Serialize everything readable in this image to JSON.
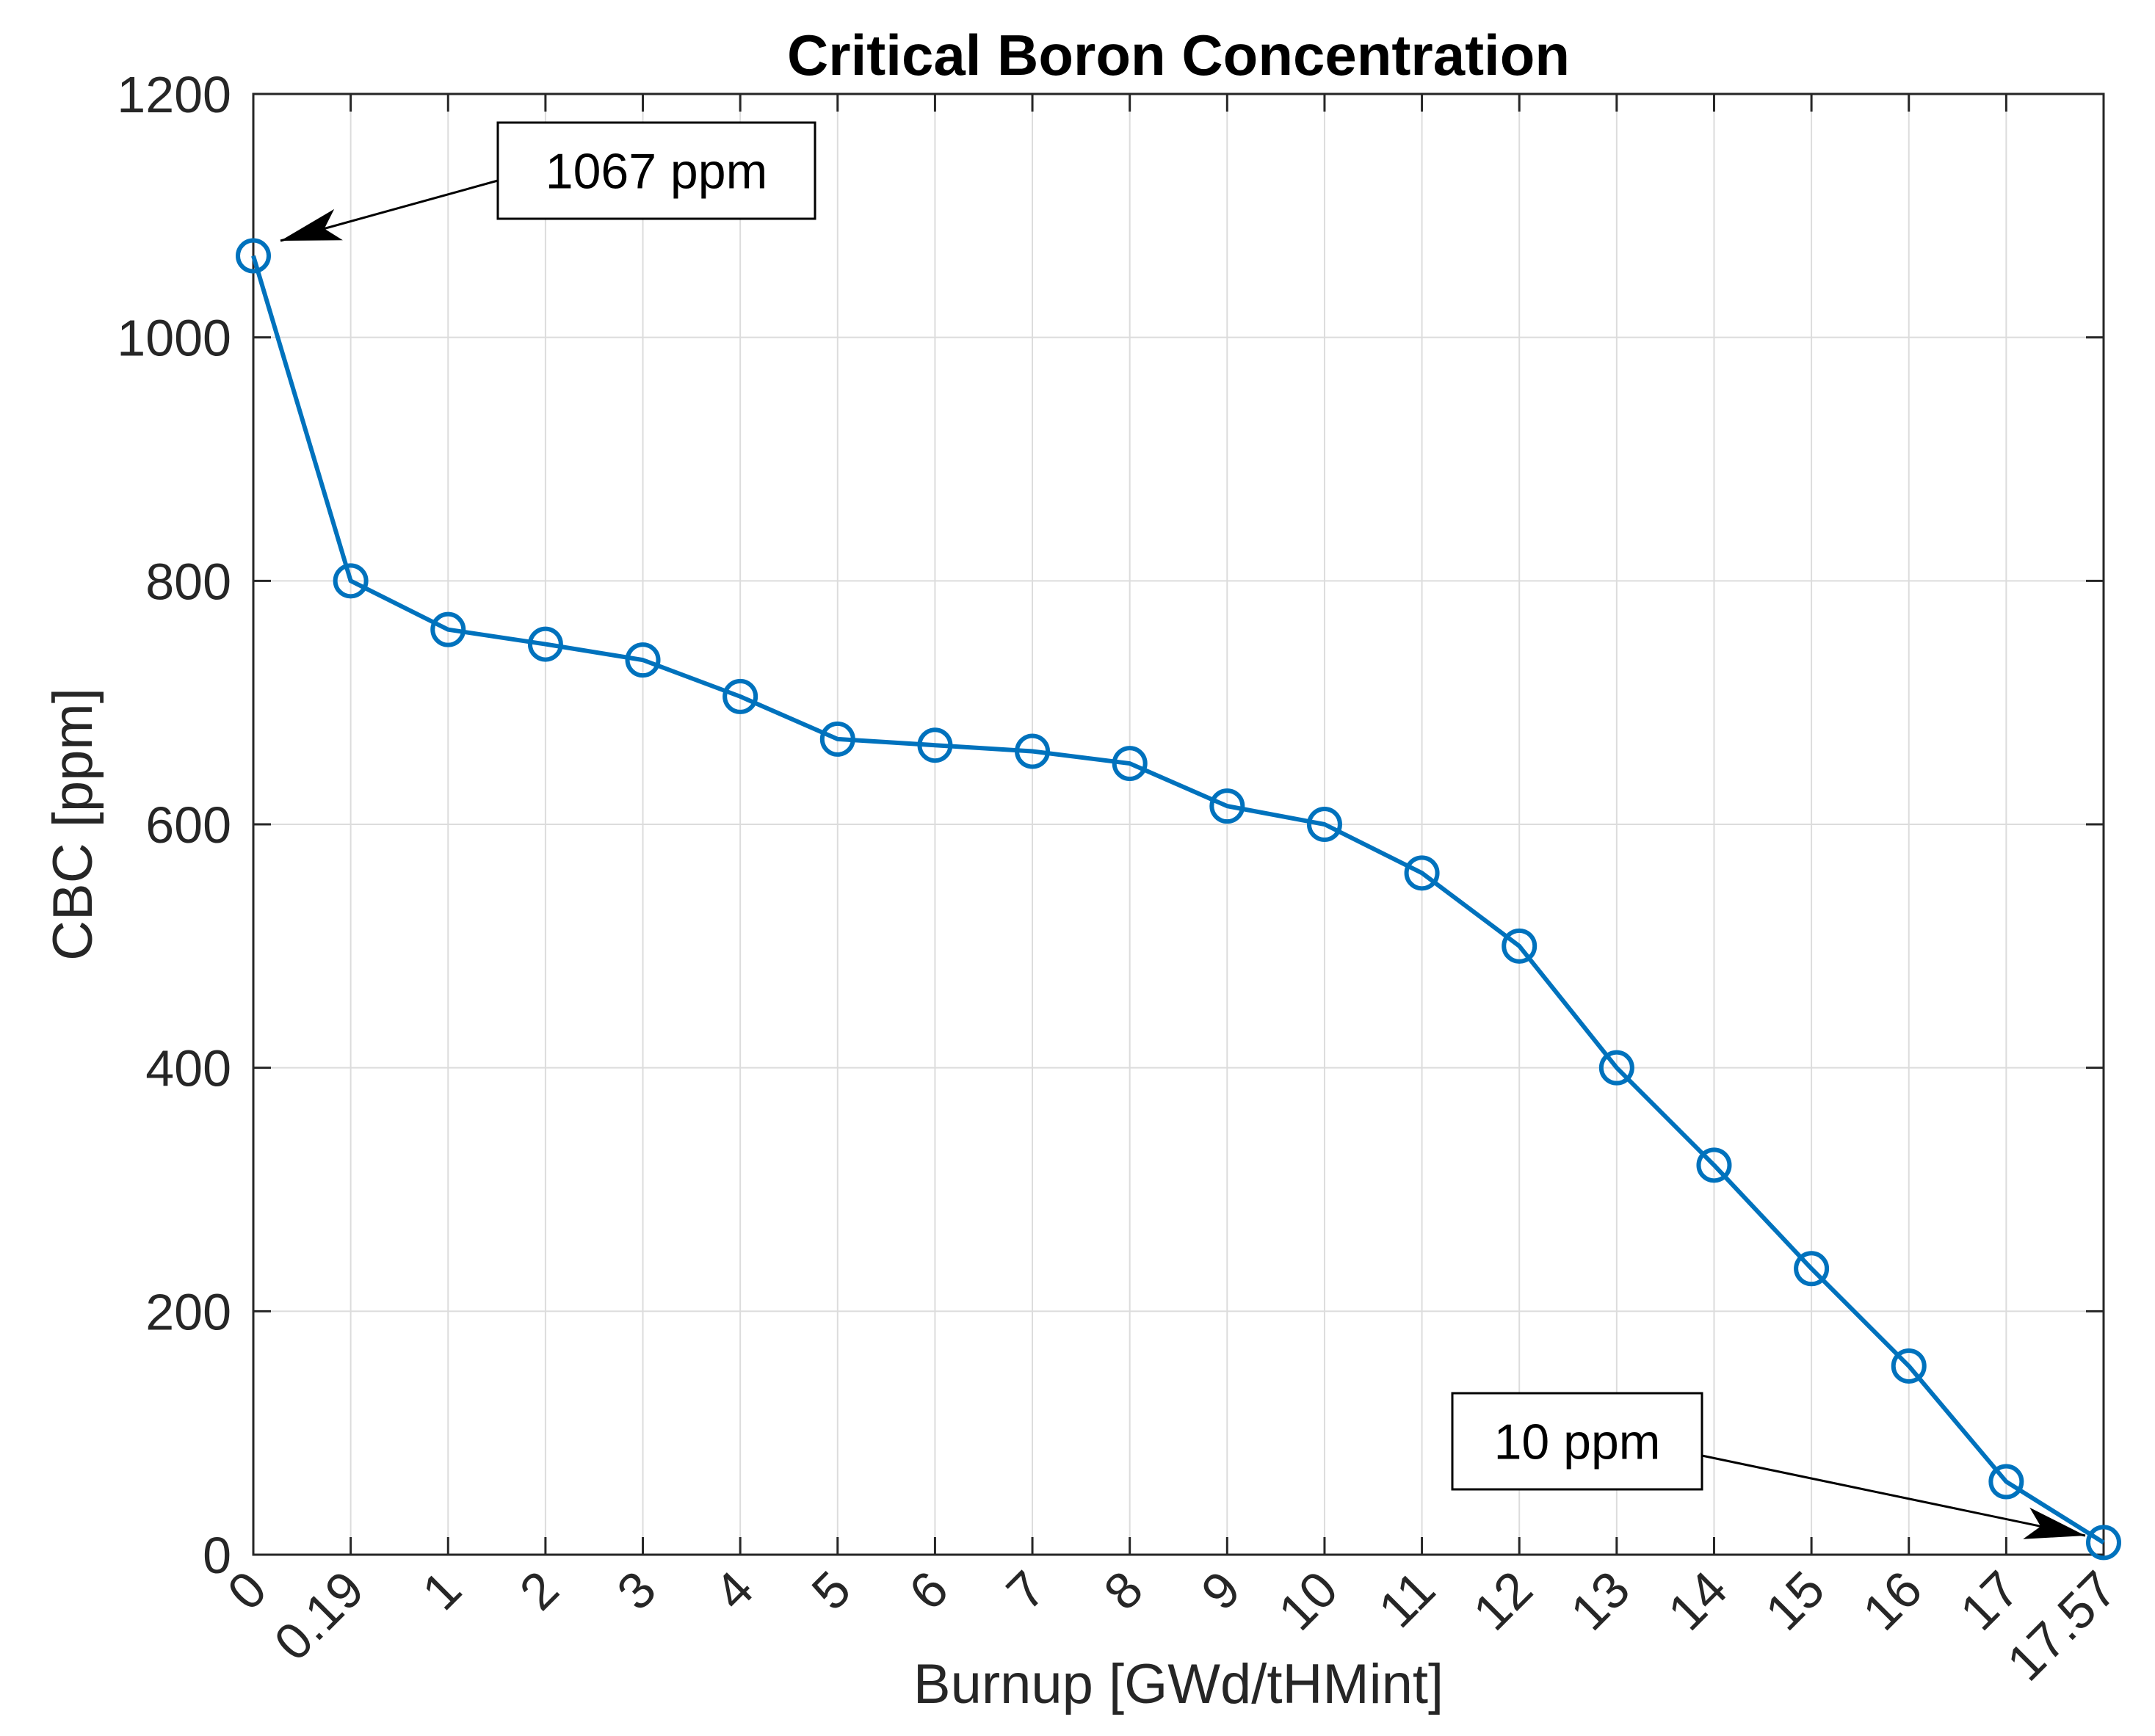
{
  "chart_data": {
    "type": "line",
    "title": "Critical Boron Concentration",
    "xlabel": "Burnup [GWd/tHMint]",
    "ylabel": "CBC [ppm]",
    "ylim": [
      0,
      1200
    ],
    "yticks": [
      0,
      200,
      400,
      600,
      800,
      1000,
      1200
    ],
    "ytick_labels": [
      "0",
      "200",
      "400",
      "600",
      "800",
      "1000",
      "1200"
    ],
    "categories": [
      "0",
      "0.19",
      "1",
      "2",
      "3",
      "4",
      "5",
      "6",
      "7",
      "8",
      "9",
      "10",
      "11",
      "12",
      "13",
      "14",
      "15",
      "16",
      "17",
      "17.57"
    ],
    "grid": true,
    "series": [
      {
        "name": "CBC",
        "marker": "circle",
        "color": "#0072BD",
        "values": [
          1067,
          800,
          760,
          748,
          735,
          705,
          670,
          665,
          660,
          650,
          615,
          600,
          560,
          500,
          400,
          320,
          235,
          155,
          60,
          10
        ]
      }
    ],
    "annotations": [
      {
        "text": "1067 ppm",
        "target_index": 0,
        "target_value": 1067
      },
      {
        "text": "10 ppm",
        "target_index": 19,
        "target_value": 10
      }
    ]
  }
}
